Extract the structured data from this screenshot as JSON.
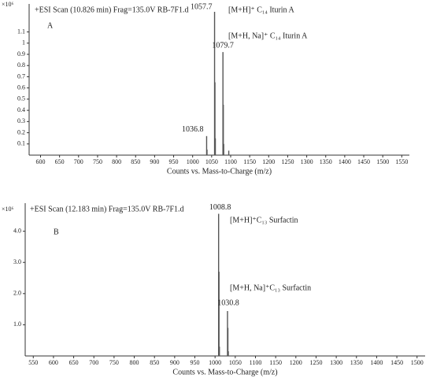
{
  "chart_data": [
    {
      "type": "stem",
      "title": "+ESI Scan (10.826 min) Frag=135.0V RB-7F1.d",
      "panel": "A",
      "y_unit": "×10⁶",
      "x_label": "Counts vs. Mass-to-Charge (m/z)",
      "x": [
        1036.8,
        1037.8,
        1057.7,
        1058.7,
        1059.7,
        1079.7,
        1080.7,
        1081.7,
        1095.0
      ],
      "values": [
        0.17,
        0.05,
        1.28,
        0.65,
        0.15,
        0.92,
        0.45,
        0.1,
        0.04
      ],
      "color": "#555555",
      "annotations": [
        "[M+H]⁺ C₁₄ Iturin A",
        "[M+H, Na]⁺ C₁₄ Iturin A"
      ],
      "xlim": [
        570,
        1570
      ],
      "xticks": [
        600,
        650,
        700,
        750,
        800,
        850,
        900,
        950,
        1000,
        1050,
        1100,
        1150,
        1200,
        1250,
        1300,
        1350,
        1400,
        1450,
        1500,
        1550
      ],
      "ylim": [
        0,
        1.35
      ],
      "yticks": [
        0.1,
        0.2,
        0.3,
        0.4,
        0.5,
        0.6,
        0.7,
        0.8,
        0.9,
        1,
        1.1
      ]
    },
    {
      "type": "stem",
      "title": "+ESI Scan (12.183 min) Frag=135.0V RB-7F1.d",
      "panel": "B",
      "y_unit": "×10⁶",
      "x_label": "Counts vs. Mass-to-Charge (m/z)",
      "x": [
        1008.8,
        1009.8,
        1010.8,
        1030.8,
        1031.8,
        1032.8
      ],
      "values": [
        4.56,
        2.7,
        0.3,
        1.44,
        0.9,
        0.15
      ],
      "color": "#555555",
      "annotations": [
        "[M+H]⁺C₁₃ Surfactin",
        "[M+H, Na]⁺C₁₃ Surfactin"
      ],
      "xlim": [
        530,
        1520
      ],
      "xticks": [
        550,
        600,
        650,
        700,
        750,
        800,
        850,
        900,
        950,
        1000,
        1050,
        1100,
        1150,
        1200,
        1250,
        1300,
        1350,
        1400,
        1450,
        1500
      ],
      "ylim": [
        0,
        4.9
      ],
      "yticks": [
        {
          "value": 1,
          "label": "1.0"
        },
        {
          "value": 2,
          "label": "2.0"
        },
        {
          "value": 3,
          "label": "3.0"
        },
        {
          "value": 4,
          "label": "4.0"
        }
      ]
    }
  ]
}
